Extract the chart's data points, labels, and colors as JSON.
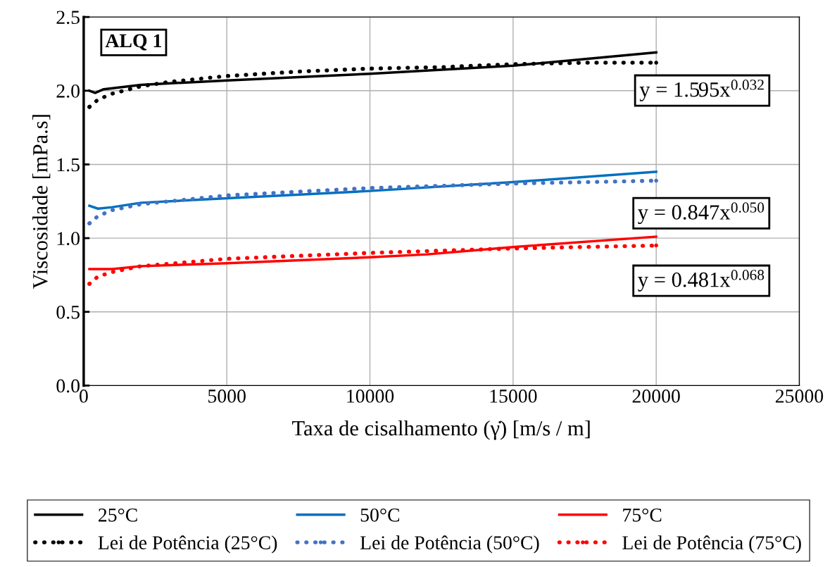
{
  "chart_data": {
    "type": "line",
    "xlabel": "Taxa de cisalhamento (γ̇) [m/s / m]",
    "ylabel": "Viscosidade [mPa.s]",
    "xlim": [
      0,
      25000
    ],
    "xticks": [
      0,
      5000,
      10000,
      15000,
      20000,
      25000
    ],
    "ylim": [
      0,
      2.5
    ],
    "yticks": [
      {
        "value": 0,
        "label": "0.0"
      },
      0.5,
      {
        "value": 1,
        "label": "1.0"
      },
      1.5,
      {
        "value": 2,
        "label": "2.0"
      },
      2.5
    ],
    "grid": true,
    "legend": "bottom",
    "marker": "none",
    "annotations": [
      "ALQ 1",
      "y = 1.595x$^{0.032}$",
      "y = 0.847x$^{0.050}$",
      "y = 0.481x$^{0.068}$"
    ],
    "series": [
      {
        "name": "25°C",
        "color": "#000000",
        "line_style": "solid",
        "x": [
          200,
          400,
          700,
          2000,
          5000,
          10000,
          15000,
          20000
        ],
        "values": [
          2.0,
          1.985,
          2.01,
          2.04,
          2.07,
          2.115,
          2.17,
          2.26
        ]
      },
      {
        "name": "Lei de Potência (25°C)",
        "color": "#000000",
        "line_style": "dotted",
        "x": [
          200,
          500,
          1000,
          2000,
          3000,
          5000,
          7500,
          10000,
          12500,
          15000,
          17500,
          20000
        ],
        "values": [
          1.89,
          1.94,
          1.98,
          2.03,
          2.06,
          2.1,
          2.13,
          2.15,
          2.16,
          2.18,
          2.19,
          2.19
        ]
      },
      {
        "name": "50°C",
        "color": "#0070c0",
        "line_style": "solid",
        "x": [
          200,
          500,
          1000,
          2000,
          5000,
          10000,
          15000,
          20000
        ],
        "values": [
          1.22,
          1.2,
          1.21,
          1.24,
          1.27,
          1.32,
          1.38,
          1.45
        ]
      },
      {
        "name": "Lei de Potência (50°C)",
        "color": "#4472c4",
        "line_style": "dotted",
        "x": [
          200,
          500,
          1000,
          2000,
          5000,
          10000,
          15000,
          20000
        ],
        "values": [
          1.1,
          1.15,
          1.19,
          1.23,
          1.29,
          1.34,
          1.37,
          1.39
        ]
      },
      {
        "name": "75°C",
        "color": "#ff0000",
        "line_style": "solid",
        "x": [
          200,
          1000,
          2000,
          5000,
          10000,
          12000,
          15000,
          20000
        ],
        "values": [
          0.79,
          0.79,
          0.81,
          0.83,
          0.87,
          0.89,
          0.94,
          1.01
        ]
      },
      {
        "name": "Lei de Potência (75°C)",
        "color": "#ff0000",
        "line_style": "dotted",
        "x": [
          200,
          500,
          1000,
          2000,
          5000,
          10000,
          15000,
          20000
        ],
        "values": [
          0.69,
          0.74,
          0.77,
          0.81,
          0.86,
          0.9,
          0.93,
          0.95
        ]
      }
    ]
  }
}
